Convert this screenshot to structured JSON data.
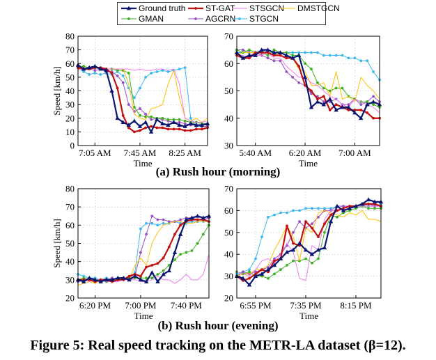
{
  "legend": [
    {
      "name": "Ground truth",
      "color": "#0a1772",
      "marker": "triangle",
      "width": 2.2
    },
    {
      "name": "ST-GAT",
      "color": "#c01010",
      "marker": "dot",
      "width": 2.2
    },
    {
      "name": "STSGCN",
      "color": "#f07cf0",
      "marker": "none",
      "width": 1
    },
    {
      "name": "DMSTGCN",
      "color": "#ffc000",
      "marker": "none",
      "width": 1
    },
    {
      "name": "GMAN",
      "color": "#3cb01e",
      "marker": "dot",
      "width": 1
    },
    {
      "name": "AGCRN",
      "color": "#9b4fc4",
      "marker": "dot",
      "width": 1
    },
    {
      "name": "STGCN",
      "color": "#3cb8f0",
      "marker": "dot",
      "width": 1
    }
  ],
  "captions": {
    "sub_a": "(a) Rush hour (morning)",
    "sub_b": "(b) Rush hour (evening)",
    "figure": "Figure 5: Real speed tracking on the METR-LA dataset (β=12)."
  },
  "chart_data": [
    {
      "type": "line",
      "id": "a1",
      "xlabel": "Time",
      "ylabel": "Speed [km/h]",
      "ylim": [
        0,
        80
      ],
      "yticks": [
        0,
        10,
        20,
        30,
        40,
        50,
        60,
        70,
        80
      ],
      "xticks": [
        3,
        11,
        19
      ],
      "xticklabels": [
        "7:05 AM",
        "7:45 AM",
        "8:25 AM"
      ],
      "xlim": [
        0,
        23
      ],
      "series": [
        {
          "name": "Ground truth",
          "values": [
            59,
            56,
            57,
            58,
            56,
            55,
            40,
            20,
            17,
            15,
            18,
            14,
            17,
            10,
            19,
            16,
            15,
            17,
            15,
            14,
            16,
            15,
            15,
            16
          ]
        },
        {
          "name": "ST-GAT",
          "values": [
            57,
            56,
            56,
            57,
            57,
            56,
            53,
            42,
            22,
            13,
            10,
            11,
            13,
            14,
            13,
            13,
            12,
            12,
            12,
            11,
            11,
            12,
            12,
            13
          ]
        },
        {
          "name": "STSGCN",
          "values": [
            55,
            57,
            56,
            57,
            57,
            56,
            56,
            56,
            56,
            56,
            55,
            56,
            55,
            55,
            56,
            56,
            55,
            56,
            45,
            20,
            18,
            17,
            17,
            18
          ]
        },
        {
          "name": "DMSTGCN",
          "values": [
            56,
            56,
            56,
            57,
            56,
            56,
            56,
            56,
            56,
            45,
            23,
            20,
            19,
            27,
            28,
            30,
            45,
            55,
            35,
            20,
            18,
            20,
            17,
            20
          ]
        },
        {
          "name": "GMAN",
          "values": [
            57,
            58,
            57,
            57,
            56,
            56,
            56,
            55,
            55,
            53,
            28,
            22,
            21,
            21,
            20,
            20,
            19,
            19,
            19,
            18,
            17,
            17,
            16,
            16
          ]
        },
        {
          "name": "AGCRN",
          "values": [
            58,
            56,
            56,
            55,
            56,
            54,
            54,
            51,
            46,
            30,
            25,
            27,
            23,
            19,
            20,
            19,
            18,
            17,
            17,
            16,
            15,
            15,
            14,
            14
          ]
        },
        {
          "name": "STGCN",
          "values": [
            57,
            54,
            52,
            53,
            52,
            53,
            52,
            54,
            51,
            42,
            35,
            42,
            50,
            53,
            54,
            55,
            54,
            55,
            56,
            57,
            20,
            14,
            14,
            14
          ]
        }
      ]
    },
    {
      "type": "line",
      "id": "a2",
      "xlabel": "Time",
      "ylabel": "",
      "ylim": [
        30,
        70
      ],
      "yticks": [
        30,
        40,
        50,
        60,
        70
      ],
      "xticks": [
        3,
        11,
        19
      ],
      "xticklabels": [
        "5:40 AM",
        "6:20 AM",
        "7:00 AM"
      ],
      "xlim": [
        0,
        23
      ],
      "series": [
        {
          "name": "Ground truth",
          "values": [
            64,
            62,
            63,
            63,
            65,
            65,
            64,
            64,
            63,
            62,
            63,
            55,
            44,
            46,
            45,
            47,
            43,
            44,
            44,
            42,
            40,
            45,
            46,
            45
          ]
        },
        {
          "name": "ST-GAT",
          "values": [
            63,
            62,
            62,
            64,
            64,
            64,
            63,
            63,
            62,
            62,
            59,
            52,
            50,
            47,
            48,
            43,
            45,
            44,
            43,
            43,
            43,
            42,
            40,
            40
          ]
        },
        {
          "name": "STSGCN",
          "values": [
            63,
            63,
            62,
            63,
            63,
            64,
            62,
            62,
            59,
            57,
            55,
            55,
            53,
            52,
            50,
            48,
            47,
            45,
            44,
            47,
            46,
            45,
            44,
            42
          ]
        },
        {
          "name": "DMSTGCN",
          "values": [
            63,
            64,
            64,
            64,
            64,
            64,
            63,
            64,
            63,
            62,
            58,
            57,
            52,
            52,
            53,
            48,
            57,
            47,
            48,
            46,
            55,
            52,
            50,
            47
          ]
        },
        {
          "name": "GMAN",
          "values": [
            65,
            64,
            65,
            64,
            64,
            63,
            65,
            64,
            64,
            63,
            63,
            60,
            58,
            53,
            51,
            50,
            51,
            51,
            48,
            47,
            46,
            46,
            45,
            44
          ]
        },
        {
          "name": "AGCRN",
          "values": [
            65,
            65,
            64,
            64,
            63,
            62,
            61,
            61,
            57,
            55,
            53,
            52,
            49,
            48,
            46,
            46,
            47,
            45,
            45,
            47,
            45,
            46,
            48,
            46
          ]
        },
        {
          "name": "STGCN",
          "values": [
            64,
            64,
            64,
            64,
            65,
            64,
            64,
            64,
            64,
            64,
            64,
            64,
            64,
            64,
            63,
            63,
            63,
            63,
            62,
            62,
            61,
            61,
            57,
            54
          ]
        }
      ]
    },
    {
      "type": "line",
      "id": "b1",
      "xlabel": "Time",
      "ylabel": "Speed [km/h]",
      "ylim": [
        20,
        80
      ],
      "yticks": [
        20,
        30,
        40,
        50,
        60,
        70,
        80
      ],
      "xticks": [
        3,
        11,
        19
      ],
      "xticklabels": [
        "6:20 PM",
        "7:00 PM",
        "7:40 PM"
      ],
      "xlim": [
        0,
        23
      ],
      "series": [
        {
          "name": "Ground truth",
          "values": [
            30,
            29,
            31,
            30,
            29,
            30,
            30,
            31,
            31,
            30,
            32,
            30,
            29,
            34,
            29,
            33,
            35,
            45,
            55,
            63,
            64,
            65,
            64,
            65
          ]
        },
        {
          "name": "ST-GAT",
          "values": [
            30,
            30,
            30,
            29,
            30,
            30,
            29,
            30,
            30,
            32,
            33,
            32,
            37,
            38,
            39,
            42,
            48,
            55,
            60,
            62,
            63,
            63,
            63,
            62
          ]
        },
        {
          "name": "STSGCN",
          "values": [
            30,
            30,
            29,
            30,
            30,
            29,
            29,
            29,
            30,
            30,
            30,
            29,
            29,
            30,
            32,
            30,
            30,
            28,
            30,
            33,
            30,
            30,
            33,
            44
          ]
        },
        {
          "name": "DMSTGCN",
          "values": [
            27,
            28,
            29,
            28,
            30,
            30,
            30,
            30,
            31,
            30,
            38,
            42,
            38,
            50,
            56,
            60,
            61,
            62,
            62,
            61,
            61,
            62,
            62,
            62
          ]
        },
        {
          "name": "GMAN",
          "values": [
            30,
            31,
            30,
            30,
            30,
            29,
            30,
            30,
            31,
            31,
            31,
            31,
            31,
            31,
            33,
            35,
            38,
            41,
            44,
            45,
            46,
            50,
            55,
            60
          ]
        },
        {
          "name": "AGCRN",
          "values": [
            29,
            30,
            30,
            30,
            29,
            30,
            31,
            30,
            31,
            31,
            32,
            45,
            55,
            65,
            63,
            63,
            62,
            62,
            63,
            64,
            64,
            63,
            63,
            64
          ]
        },
        {
          "name": "STGCN",
          "values": [
            33,
            32,
            31,
            31,
            30,
            31,
            30,
            31,
            30,
            31,
            34,
            58,
            61,
            61,
            60,
            61,
            61,
            62,
            61,
            61,
            62,
            62,
            62,
            62
          ]
        }
      ]
    },
    {
      "type": "line",
      "id": "b2",
      "xlabel": "Time",
      "ylabel": "",
      "ylim": [
        20,
        70
      ],
      "yticks": [
        20,
        30,
        40,
        50,
        60,
        70
      ],
      "xticks": [
        3,
        11,
        19
      ],
      "xticklabels": [
        "6:55 PM",
        "7:35 PM",
        "8:15 PM"
      ],
      "xlim": [
        0,
        23
      ],
      "series": [
        {
          "name": "Ground truth",
          "values": [
            30,
            29,
            26,
            30,
            31,
            33,
            35,
            38,
            41,
            42,
            45,
            42,
            40,
            42,
            43,
            55,
            62,
            60,
            61,
            62,
            63,
            65,
            64,
            64
          ]
        },
        {
          "name": "ST-GAT",
          "values": [
            30,
            28,
            29,
            31,
            33,
            32,
            37,
            38,
            53,
            45,
            44,
            55,
            52,
            48,
            54,
            58,
            60,
            61,
            62,
            62,
            63,
            63,
            63,
            62
          ]
        },
        {
          "name": "STSGCN",
          "values": [
            32,
            31,
            30,
            33,
            37,
            38,
            36,
            40,
            45,
            41,
            29,
            28,
            44,
            42,
            56,
            60,
            60,
            61,
            62,
            62,
            62,
            62,
            62,
            62
          ]
        },
        {
          "name": "DMSTGCN",
          "values": [
            30,
            31,
            31,
            33,
            33,
            35,
            42,
            47,
            53,
            48,
            37,
            52,
            50,
            59,
            60,
            59,
            58,
            57,
            59,
            58,
            60,
            56,
            56,
            55
          ]
        },
        {
          "name": "GMAN",
          "values": [
            32,
            31,
            32,
            30,
            30,
            29,
            31,
            33,
            35,
            37,
            37,
            38,
            36,
            38,
            50,
            58,
            57,
            59,
            60,
            61,
            62,
            61,
            61,
            61
          ]
        },
        {
          "name": "AGCRN",
          "values": [
            30,
            32,
            31,
            32,
            33,
            34,
            38,
            40,
            44,
            50,
            55,
            52,
            54,
            57,
            60,
            60,
            62,
            62,
            62,
            62,
            62,
            63,
            62,
            62
          ]
        },
        {
          "name": "STGCN",
          "values": [
            31,
            32,
            33,
            38,
            48,
            57,
            58,
            59,
            59,
            60,
            60,
            61,
            61,
            61,
            61,
            61,
            62,
            62,
            62,
            62,
            62,
            62,
            62,
            63
          ]
        }
      ]
    }
  ]
}
